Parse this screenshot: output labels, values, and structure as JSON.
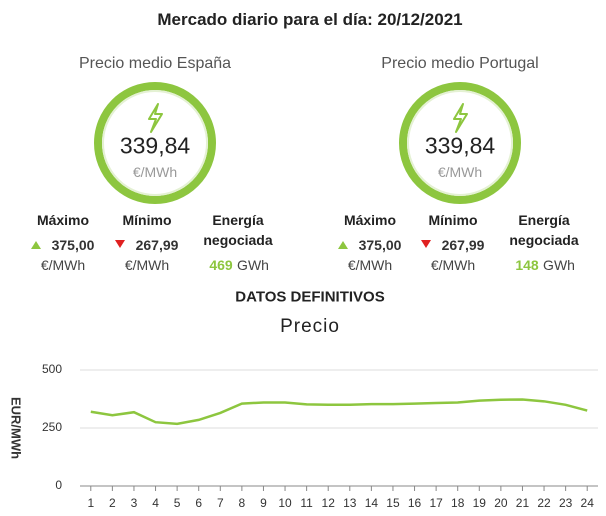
{
  "header": {
    "title": "Mercado diario para el día: 20/12/2021"
  },
  "panels": [
    {
      "title": "Precio medio España",
      "price": "339,84",
      "unit": "€/MWh",
      "max": {
        "label": "Máximo",
        "value": "375,00",
        "unit": "€/MWh"
      },
      "min": {
        "label": "Mínimo",
        "value": "267,99",
        "unit": "€/MWh"
      },
      "energy": {
        "label": "Energía negociada",
        "value": 469,
        "unit": "GWh"
      }
    },
    {
      "title": "Precio medio Portugal",
      "price": "339,84",
      "unit": "€/MWh",
      "max": {
        "label": "Máximo",
        "value": "375,00",
        "unit": "€/MWh"
      },
      "min": {
        "label": "Mínimo",
        "value": "267,99",
        "unit": "€/MWh"
      },
      "energy": {
        "label": "Energía negociada",
        "value": 148,
        "unit": "GWh"
      }
    }
  ],
  "section_title": "DATOS DEFINITIVOS",
  "chart_data": {
    "type": "line",
    "title": "Precio",
    "y_label": "EUR/MWh",
    "x": [
      1,
      2,
      3,
      4,
      5,
      6,
      7,
      8,
      9,
      10,
      11,
      12,
      13,
      14,
      15,
      16,
      17,
      18,
      19,
      20,
      21,
      22,
      23,
      24
    ],
    "values": [
      320,
      305,
      318,
      275,
      268,
      285,
      315,
      355,
      360,
      360,
      352,
      350,
      350,
      353,
      353,
      355,
      358,
      360,
      368,
      372,
      373,
      365,
      350,
      325
    ],
    "color": "#8dc63f",
    "xlim": [
      0.5,
      24.5
    ],
    "ylim": [
      0,
      500
    ],
    "yticks": [
      0,
      250,
      500
    ],
    "grid": true
  }
}
